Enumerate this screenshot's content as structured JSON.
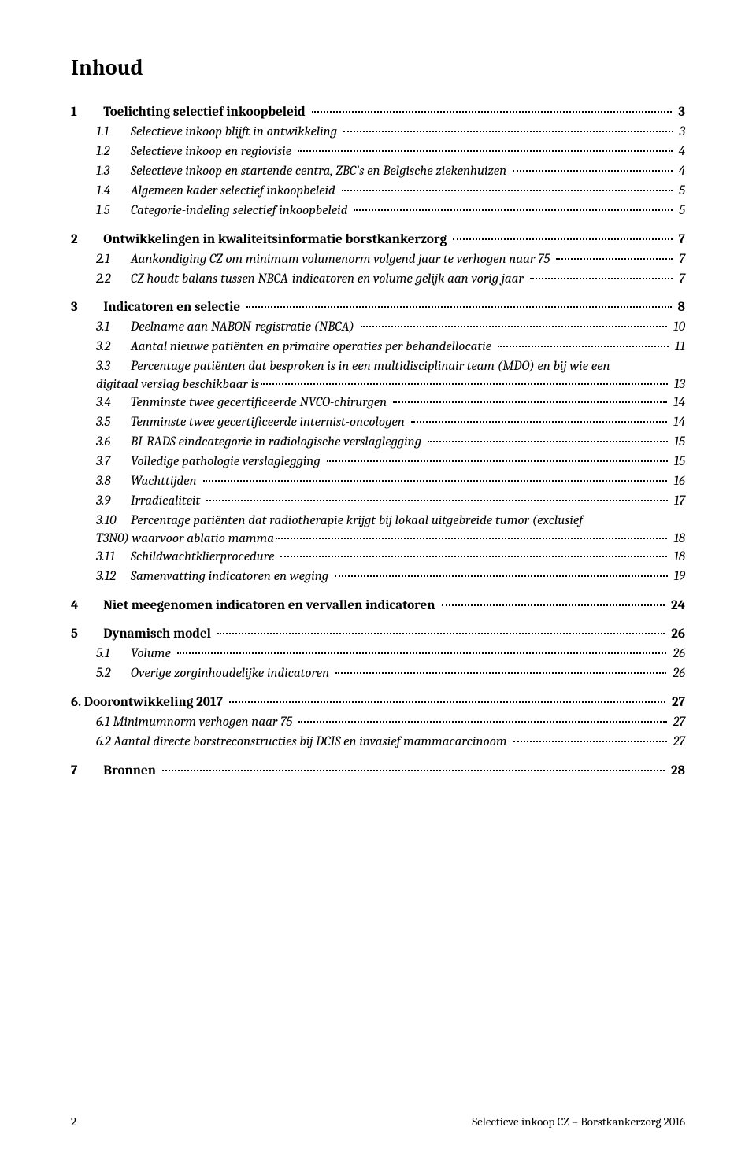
{
  "title": "Inhoud",
  "footer": {
    "page": "2",
    "right": "Selectieve inkoop CZ – Borstkankerzorg 2016"
  },
  "toc": [
    {
      "type": "l1",
      "num": "1",
      "text": "Toelichting selectief inkoopbeleid",
      "page": "3"
    },
    {
      "type": "l2",
      "num": "1.1",
      "text": "Selectieve inkoop blijft in ontwikkeling",
      "page": "3"
    },
    {
      "type": "l2",
      "num": "1.2",
      "text": "Selectieve inkoop en regiovisie",
      "page": "4"
    },
    {
      "type": "l2",
      "num": "1.3",
      "text": "Selectieve inkoop en startende centra, ZBC's en Belgische ziekenhuizen",
      "page": "4"
    },
    {
      "type": "l2",
      "num": "1.4",
      "text": "Algemeen kader selectief inkoopbeleid",
      "page": "5"
    },
    {
      "type": "l2",
      "num": "1.5",
      "text": "Categorie-indeling selectief inkoopbeleid",
      "page": "5"
    },
    {
      "type": "l1",
      "num": "2",
      "text": "Ontwikkelingen in kwaliteitsinformatie borstkankerzorg",
      "page": "7"
    },
    {
      "type": "l2",
      "num": "2.1",
      "text": "Aankondiging CZ om minimum volumenorm volgend jaar te verhogen naar 75",
      "page": "7"
    },
    {
      "type": "l2",
      "num": "2.2",
      "text": "CZ houdt balans tussen NBCA-indicatoren en volume gelijk aan vorig jaar",
      "page": "7"
    },
    {
      "type": "l1",
      "num": "3",
      "text": "Indicatoren en selectie",
      "page": "8"
    },
    {
      "type": "l2",
      "num": "3.1",
      "text": "Deelname aan NABON-registratie (NBCA)",
      "page": "10"
    },
    {
      "type": "l2",
      "num": "3.2",
      "text": "Aantal nieuwe patiënten en primaire operaties per behandellocatie",
      "page": "11"
    },
    {
      "type": "l2multi",
      "num": "3.3",
      "line1": "Percentage patiënten dat besproken is in een multidisciplinair team  (MDO) en bij wie een",
      "line2": "digitaal verslag beschikbaar is",
      "page": "13"
    },
    {
      "type": "l2",
      "num": "3.4",
      "text": "Tenminste twee gecertificeerde NVCO-chirurgen",
      "page": "14"
    },
    {
      "type": "l2",
      "num": "3.5",
      "text": "Tenminste twee gecertificeerde internist-oncologen",
      "page": "14"
    },
    {
      "type": "l2",
      "num": "3.6",
      "text": "BI-RADS eindcategorie in radiologische verslaglegging",
      "page": "15"
    },
    {
      "type": "l2",
      "num": "3.7",
      "text": "Volledige pathologie verslaglegging",
      "page": "15"
    },
    {
      "type": "l2",
      "num": "3.8",
      "text": "Wachttijden",
      "page": "16"
    },
    {
      "type": "l2",
      "num": "3.9",
      "text": "Irradicaliteit",
      "page": "17"
    },
    {
      "type": "l2multi",
      "num": "3.10",
      "line1": "Percentage patiënten dat radiotherapie krijgt bij lokaal uitgebreide tumor  (exclusief",
      "line2": "T3N0) waarvoor ablatio mamma",
      "page": "18"
    },
    {
      "type": "l2",
      "num": "3.11",
      "text": "Schildwachtklierprocedure",
      "page": "18"
    },
    {
      "type": "l2",
      "num": "3.12",
      "text": "Samenvatting indicatoren en weging",
      "page": "19"
    },
    {
      "type": "l1",
      "num": "4",
      "text": "Niet meegenomen indicatoren en vervallen indicatoren",
      "page": "24"
    },
    {
      "type": "l1",
      "num": "5",
      "text": "Dynamisch model",
      "page": "26"
    },
    {
      "type": "l2",
      "num": "5.1",
      "text": "Volume",
      "page": "26"
    },
    {
      "type": "l2",
      "num": "5.2",
      "text": "Overige zorginhoudelijke indicatoren",
      "page": "26"
    },
    {
      "type": "l1nonum",
      "text": "6. Doorontwikkeling 2017",
      "page": "27"
    },
    {
      "type": "l2nonum",
      "text": "6.1 Minimumnorm verhogen naar 75",
      "page": "27"
    },
    {
      "type": "l2nonum",
      "text": "6.2 Aantal directe borstreconstructies bij DCIS en invasief mammacarcinoom",
      "page": "27"
    },
    {
      "type": "l1",
      "num": "7",
      "text": "Bronnen",
      "page": "28"
    }
  ]
}
